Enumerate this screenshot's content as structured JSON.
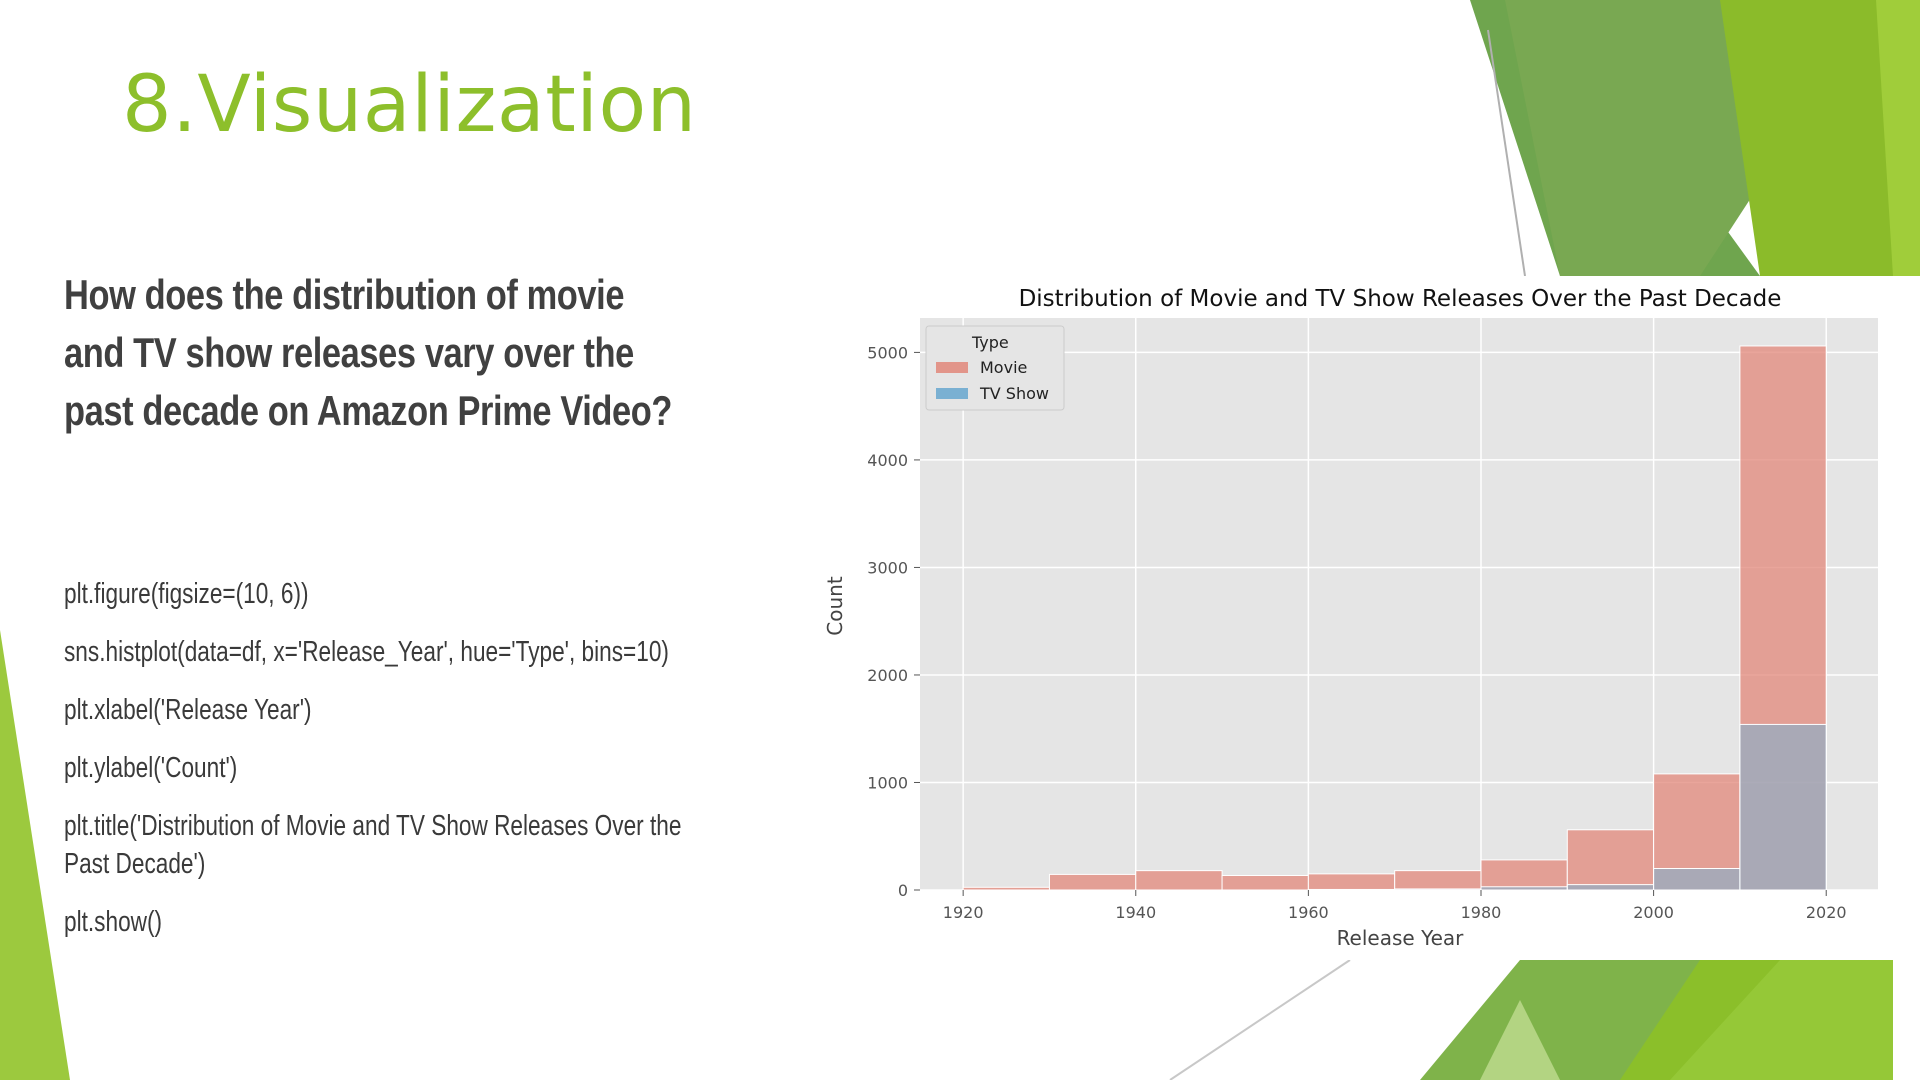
{
  "slide": {
    "title": "8.Visualization",
    "question": "How does the distribution of movie and TV show releases vary over the past decade on Amazon Prime Video?",
    "code_lines": [
      "plt.figure(figsize=(10, 6))",
      "sns.histplot(data=df, x='Release_Year', hue='Type', bins=10)",
      "plt.xlabel('Release Year')",
      "plt.ylabel('Count')",
      "plt.title('Distribution of Movie and TV Show Releases Over the Past Decade')",
      "plt.show()"
    ]
  },
  "theme": {
    "accent": "#8dbf2b",
    "dark_green": "#5f9b3b",
    "light_green": "#a4cf45"
  },
  "chart_data": {
    "type": "bar",
    "title": "Distribution of Movie and TV Show Releases Over the Past Decade",
    "xlabel": "Release Year",
    "ylabel": "Count",
    "bin_edges": [
      1920,
      1930,
      1940,
      1950,
      1960,
      1970,
      1980,
      1990,
      2000,
      2010,
      2020
    ],
    "xticks": [
      1920,
      1940,
      1960,
      1980,
      2000,
      2020
    ],
    "yticks": [
      0,
      1000,
      2000,
      3000,
      4000,
      5000
    ],
    "xlim": [
      1915,
      2026
    ],
    "ylim": [
      0,
      5320
    ],
    "grid": true,
    "legend_title": "Type",
    "legend_position": "top-left",
    "series": [
      {
        "name": "Movie",
        "color": "#e2877a",
        "values": [
          25,
          145,
          180,
          135,
          150,
          180,
          280,
          560,
          1080,
          5060
        ]
      },
      {
        "name": "TV Show",
        "color": "#7ab0d2",
        "values": [
          0,
          0,
          0,
          0,
          5,
          10,
          30,
          50,
          200,
          1540
        ]
      }
    ]
  }
}
